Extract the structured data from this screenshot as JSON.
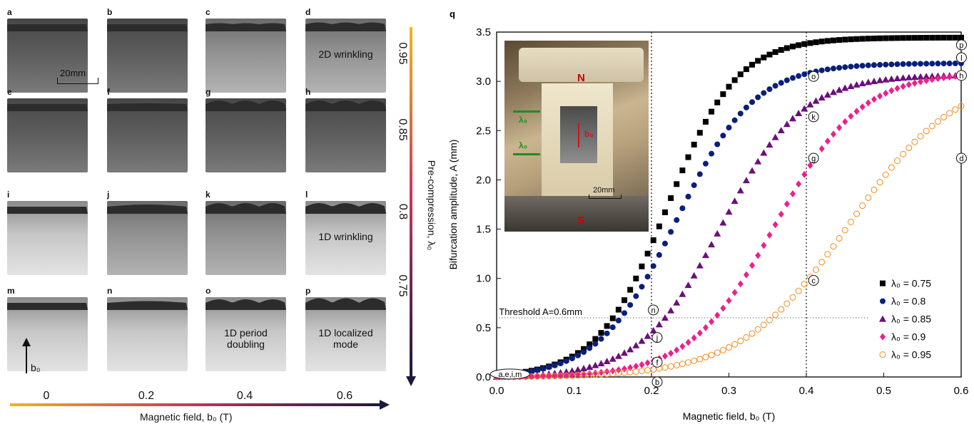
{
  "left_figure": {
    "panels": [
      {
        "letter": "a",
        "row": 0,
        "col": 0,
        "text": "",
        "tone": "dark"
      },
      {
        "letter": "b",
        "row": 0,
        "col": 1,
        "text": "",
        "tone": "dark"
      },
      {
        "letter": "c",
        "row": 0,
        "col": 2,
        "text": "",
        "tone": "mid"
      },
      {
        "letter": "d",
        "row": 0,
        "col": 3,
        "text": "2D wrinkling",
        "tone": "mid"
      },
      {
        "letter": "e",
        "row": 1,
        "col": 0,
        "text": "",
        "tone": "dark"
      },
      {
        "letter": "f",
        "row": 1,
        "col": 1,
        "text": "",
        "tone": "dark"
      },
      {
        "letter": "g",
        "row": 1,
        "col": 2,
        "text": "",
        "tone": "dark"
      },
      {
        "letter": "h",
        "row": 1,
        "col": 3,
        "text": "",
        "tone": "dark"
      },
      {
        "letter": "i",
        "row": 2,
        "col": 0,
        "text": "",
        "tone": "light"
      },
      {
        "letter": "j",
        "row": 2,
        "col": 1,
        "text": "",
        "tone": "mid"
      },
      {
        "letter": "k",
        "row": 2,
        "col": 2,
        "text": "",
        "tone": "mid"
      },
      {
        "letter": "l",
        "row": 2,
        "col": 3,
        "text": "1D wrinkling",
        "tone": "light"
      },
      {
        "letter": "m",
        "row": 3,
        "col": 0,
        "text": "",
        "tone": "light"
      },
      {
        "letter": "n",
        "row": 3,
        "col": 1,
        "text": "",
        "tone": "light"
      },
      {
        "letter": "o",
        "row": 3,
        "col": 2,
        "text": "1D period doubling",
        "tone": "light"
      },
      {
        "letter": "p",
        "row": 3,
        "col": 3,
        "text": "1D localized mode",
        "tone": "light"
      }
    ],
    "scale_bar": "20mm",
    "field_arrow_label": "b₀",
    "row_values": [
      "0.95",
      "0.85",
      "0.8",
      "0.75"
    ],
    "column_values": [
      "0",
      "0.2",
      "0.4",
      "0.6"
    ],
    "vertical_axis_title": "Pre-compression, λ₀",
    "horizontal_axis_title": "Magnetic field, b₀ (T)"
  },
  "chart_data": {
    "panel_letter": "q",
    "type": "scatter",
    "xlabel": "Magnetic field, b₀ (T)",
    "ylabel": "Bifurcation amplitude, A (mm)",
    "xlim": [
      0,
      0.6
    ],
    "ylim": [
      0,
      3.5
    ],
    "x_ticks": [
      "0.0",
      "0.1",
      "0.2",
      "0.3",
      "0.4",
      "0.5",
      "0.6"
    ],
    "y_ticks": [
      "0.0",
      "0.5",
      "1.0",
      "1.5",
      "2.0",
      "2.5",
      "3.0",
      "3.5"
    ],
    "legend_position": "bottom-right",
    "threshold_label": "Threshold A=0.6mm",
    "threshold_value": 0.6,
    "vertical_lines": [
      0.2,
      0.4
    ],
    "inset": {
      "N": "N",
      "S": "S",
      "lambda": "λ₀",
      "b": "b₀",
      "scale": "20mm"
    },
    "point_labels": [
      {
        "text": "a,e,i,m",
        "x": 0.01,
        "y": 0.03
      },
      {
        "text": "b",
        "x": 0.2,
        "y": -0.05
      },
      {
        "text": "f",
        "x": 0.2,
        "y": 0.15
      },
      {
        "text": "j",
        "x": 0.2,
        "y": 0.4
      },
      {
        "text": "n",
        "x": 0.195,
        "y": 0.68
      },
      {
        "text": "c",
        "x": 0.402,
        "y": 0.98
      },
      {
        "text": "g",
        "x": 0.402,
        "y": 2.22
      },
      {
        "text": "k",
        "x": 0.402,
        "y": 2.64
      },
      {
        "text": "o",
        "x": 0.402,
        "y": 3.05
      },
      {
        "text": "d",
        "x": 0.593,
        "y": 2.22
      },
      {
        "text": "h",
        "x": 0.593,
        "y": 3.06
      },
      {
        "text": "l",
        "x": 0.593,
        "y": 3.24
      },
      {
        "text": "p",
        "x": 0.593,
        "y": 3.37
      }
    ],
    "series": [
      {
        "name": "λ₀ = 0.75",
        "color": "#000000",
        "marker": "square",
        "curve": {
          "b0": 0.22,
          "w": 0.045,
          "amp": 3.45,
          "base": 0.02,
          "step": 0.0075
        }
      },
      {
        "name": "λ₀ = 0.8",
        "color": "#0a1f7a",
        "marker": "circle",
        "curve": {
          "b0": 0.232,
          "w": 0.05,
          "amp": 3.2,
          "base": 0.015,
          "step": 0.0075
        }
      },
      {
        "name": "λ₀ = 0.85",
        "color": "#6b0f7a",
        "marker": "triangle",
        "curve": {
          "b0": 0.29,
          "w": 0.052,
          "amp": 3.08,
          "base": 0.0,
          "step": 0.0075
        }
      },
      {
        "name": "λ₀ = 0.9",
        "color": "#ee1f8c",
        "marker": "diamond",
        "curve": {
          "b0": 0.36,
          "w": 0.055,
          "amp": 3.1,
          "base": 0.0,
          "step": 0.0075
        }
      },
      {
        "name": "λ₀ = 0.95",
        "color": "#f28c1c",
        "marker": "open-circle",
        "curve": {
          "b0": 0.455,
          "w": 0.07,
          "amp": 3.1,
          "base": 0.0,
          "step": 0.0075
        }
      }
    ]
  },
  "colors": {
    "axis": "#111111",
    "threshold": "#333333",
    "gradient_start": "#f7b21b",
    "gradient_mid": "#a31c5a",
    "gradient_end": "#1a1a3a"
  }
}
